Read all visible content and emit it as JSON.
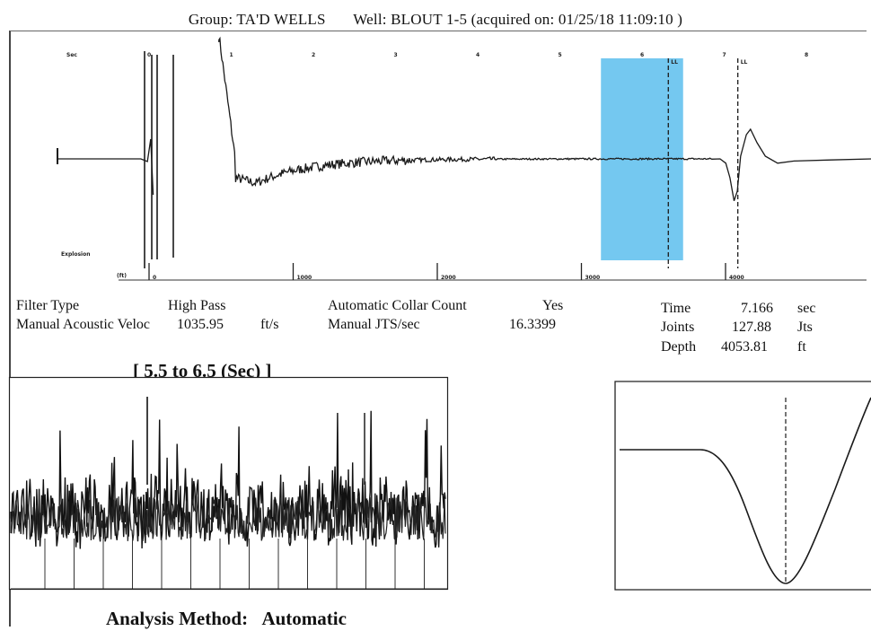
{
  "header": {
    "group_label": "Group:",
    "group_name": "TA'D WELLS",
    "well_label": "Well:",
    "well_name": "BLOUT 1-5",
    "acquired": "(acquired on: 01/25/18 11:09:10 )"
  },
  "params": {
    "filter_type_label": "Filter Type",
    "filter_type_value": "High Pass",
    "velocity_label": "Manual Acoustic Veloc",
    "velocity_value": "1035.95",
    "velocity_unit": "ft/s",
    "collar_count_label": "Automatic Collar Count",
    "collar_count_value": "Yes",
    "jts_sec_label": "Manual JTS/sec",
    "jts_sec_value": "16.3399"
  },
  "results": {
    "time_label": "Time",
    "time_value": "7.166",
    "time_unit": "sec",
    "joints_label": "Joints",
    "joints_value": "127.88",
    "joints_unit": "Jts",
    "depth_label": "Depth",
    "depth_value": "4053.81",
    "depth_unit": "ft"
  },
  "window_title": "[ 5.5  to  6.5 (Sec) ]",
  "footer": {
    "label": "Analysis Method:",
    "value": "Automatic"
  },
  "colors": {
    "highlight": "#74c8f0",
    "trace": "#1a1a1a"
  },
  "chart_data": [
    {
      "type": "line",
      "name": "acoustic-trace",
      "top_axis_unit": "Sec",
      "top_ticks": [
        "0",
        "1",
        "2",
        "3",
        "4",
        "5",
        "6",
        "7",
        "8"
      ],
      "top_range": [
        0,
        8
      ],
      "bottom_axis_unit": "(ft)",
      "bottom_ticks": [
        {
          "label": "0",
          "value": 0
        },
        {
          "label": "1000",
          "value": 1000
        },
        {
          "label": "2000",
          "value": 2000
        },
        {
          "label": "3000",
          "value": 3000
        },
        {
          "label": "4000",
          "value": 4000
        }
      ],
      "left_label": "Explosion",
      "selection_window_sec": [
        5.5,
        6.5
      ],
      "marker_sec": [
        6.32,
        7.166
      ],
      "marker_labels": [
        "LL",
        "LL"
      ],
      "trace_points": [
        [
          -1.1,
          0
        ],
        [
          -0.1,
          0
        ],
        [
          0.0,
          0.35
        ],
        [
          0.03,
          0
        ],
        [
          0.85,
          1.05
        ],
        [
          0.95,
          -0.25
        ],
        [
          1.1,
          -0.4
        ],
        [
          1.3,
          -0.45
        ],
        [
          1.6,
          -0.28
        ],
        [
          2.0,
          -0.1
        ],
        [
          2.5,
          -0.02
        ],
        [
          3.0,
          0.0
        ],
        [
          6.9,
          0
        ],
        [
          7.0,
          -0.1
        ],
        [
          7.05,
          -0.55
        ],
        [
          7.1,
          -0.05
        ],
        [
          7.15,
          0.4
        ],
        [
          7.3,
          0.05
        ],
        [
          7.5,
          -0.05
        ],
        [
          8.3,
          0.0
        ]
      ]
    },
    {
      "type": "line",
      "name": "collar-window",
      "x_range_sec": [
        5.5,
        6.5
      ],
      "collar_marks": 14
    },
    {
      "type": "line",
      "name": "zoom-reflection",
      "points": [
        [
          0,
          0
        ],
        [
          0.3,
          0
        ],
        [
          0.55,
          -0.5
        ],
        [
          0.7,
          -1.0
        ],
        [
          0.85,
          -0.45
        ],
        [
          1.0,
          0.6
        ]
      ]
    }
  ]
}
